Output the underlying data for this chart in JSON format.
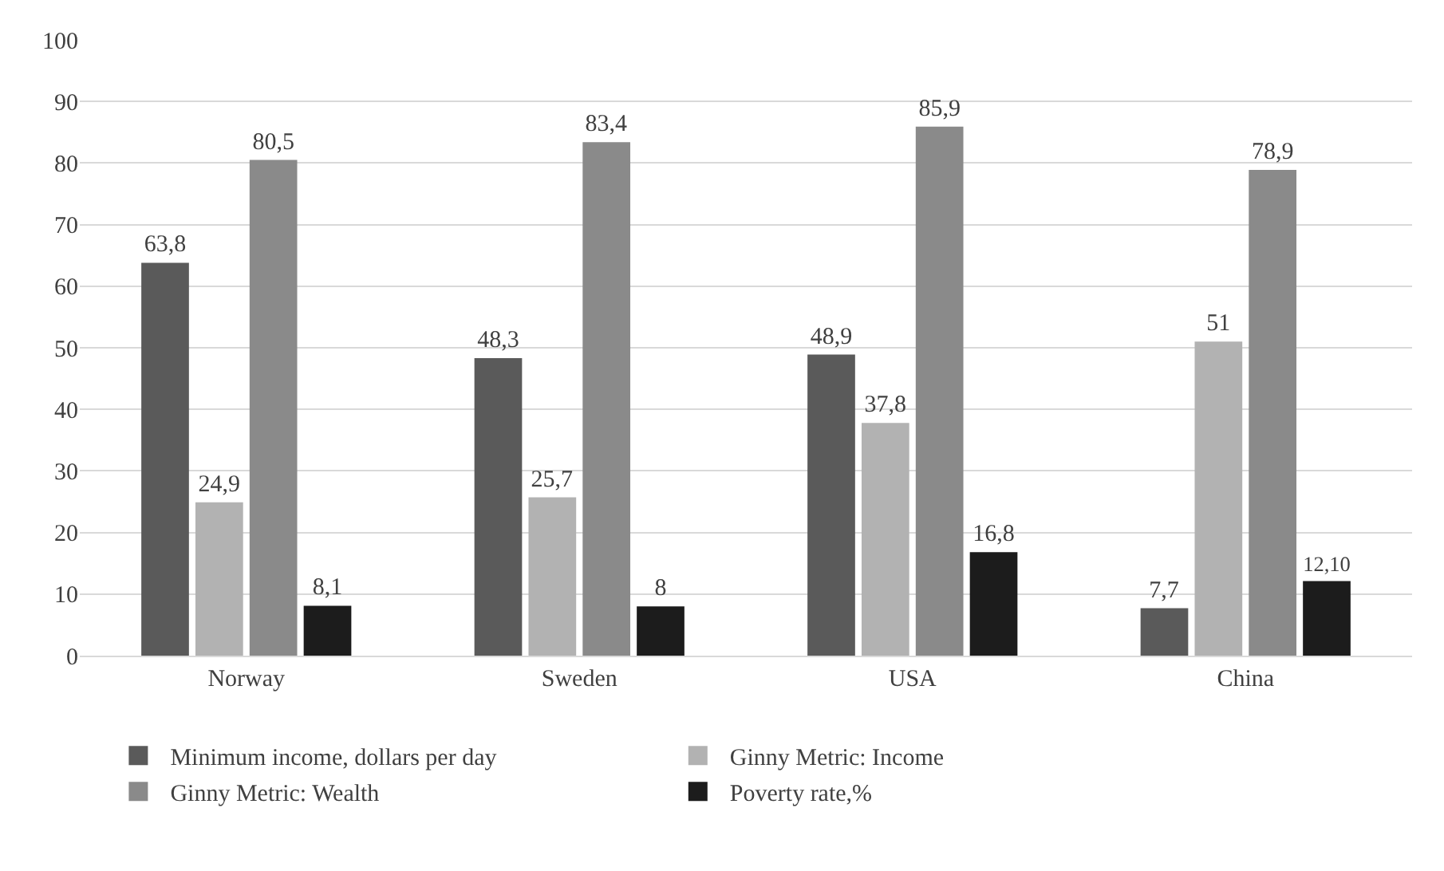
{
  "chart_data": {
    "type": "bar",
    "categories": [
      "Norway",
      "Sweden",
      "USA",
      "China"
    ],
    "series": [
      {
        "name": "Minimum income, dollars per day",
        "color": "#5a5a5a",
        "values": [
          63.8,
          48.3,
          48.9,
          7.7
        ],
        "value_labels": [
          "63,8",
          "48,3",
          "48,9",
          "7,7"
        ]
      },
      {
        "name": "Ginny Metric: Income",
        "color": "#b2b2b2",
        "values": [
          24.9,
          25.7,
          37.8,
          51
        ],
        "value_labels": [
          "24,9",
          "25,7",
          "37,8",
          "51"
        ]
      },
      {
        "name": "Ginny Metric: Wealth",
        "color": "#8a8a8a",
        "values": [
          80.5,
          83.4,
          85.9,
          78.9
        ],
        "value_labels": [
          "80,5",
          "83,4",
          "85,9",
          "78,9"
        ]
      },
      {
        "name": "Poverty rate,%",
        "color": "#1c1c1c",
        "values": [
          8.1,
          8,
          16.8,
          12.1
        ],
        "value_labels": [
          "8,1",
          "8",
          "16,8",
          "12,10"
        ]
      }
    ],
    "ylim": [
      0,
      100
    ],
    "yticks": [
      0,
      10,
      20,
      30,
      40,
      50,
      60,
      70,
      80,
      90,
      100
    ],
    "grid": "y",
    "legend": "bottom"
  }
}
